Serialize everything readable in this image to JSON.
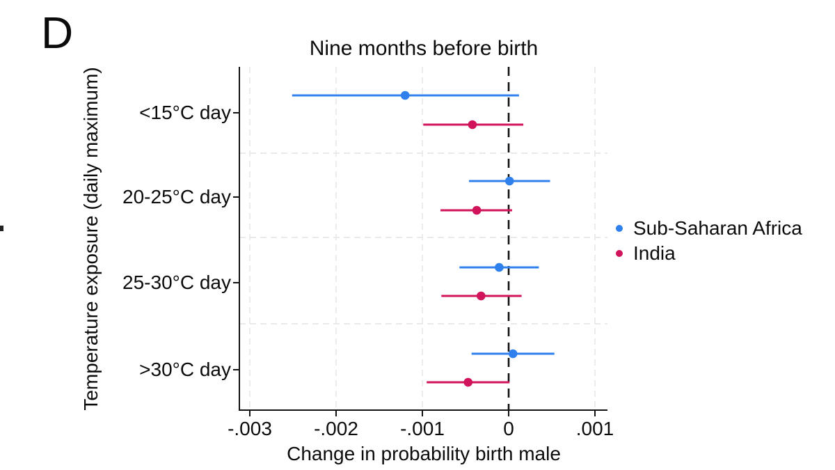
{
  "panel_label": "D",
  "title": "Nine months before birth",
  "legend": {
    "items": [
      {
        "label": "Sub-Saharan Africa",
        "color": "#2f80ed"
      },
      {
        "label": "India",
        "color": "#d0135a"
      }
    ]
  },
  "chart_data": {
    "type": "scatter",
    "subtype": "coefficient_plot_with_confidence_intervals",
    "title": "Nine months before birth",
    "panel_label": "D",
    "xlabel": "Change in probability birth male",
    "ylabel": "Temperature exposure (daily maximum)",
    "categories": [
      "<15°C day",
      "20-25°C day",
      "25-30°C day",
      ">30°C day"
    ],
    "x_ticks": [
      {
        "value": -0.003,
        "label": "-.003"
      },
      {
        "value": -0.002,
        "label": "-.002"
      },
      {
        "value": -0.001,
        "label": "-.001"
      },
      {
        "value": 0,
        "label": "0"
      },
      {
        "value": 0.001,
        "label": ".001"
      }
    ],
    "xlim": [
      -0.0031,
      0.00115
    ],
    "zero_reference_line": 0,
    "grid": {
      "horizontal_dashed_between_categories": true,
      "vertical_dashed_at_ticks": true
    },
    "legend_position": "right",
    "series": [
      {
        "name": "Sub-Saharan Africa",
        "color": "#2f80ed",
        "points": [
          {
            "category": "<15°C day",
            "value": -0.0012,
            "ci_low": -0.00251,
            "ci_high": 0.00012
          },
          {
            "category": "20-25°C day",
            "value": 1e-05,
            "ci_low": -0.00046,
            "ci_high": 0.00048
          },
          {
            "category": "25-30°C day",
            "value": -0.00011,
            "ci_low": -0.00057,
            "ci_high": 0.00035
          },
          {
            "category": ">30°C day",
            "value": 5e-05,
            "ci_low": -0.00043,
            "ci_high": 0.00053
          }
        ]
      },
      {
        "name": "India",
        "color": "#d0135a",
        "points": [
          {
            "category": "<15°C day",
            "value": -0.00042,
            "ci_low": -0.00099,
            "ci_high": 0.00017
          },
          {
            "category": "20-25°C day",
            "value": -0.00037,
            "ci_low": -0.00079,
            "ci_high": 4e-05
          },
          {
            "category": "25-30°C day",
            "value": -0.00032,
            "ci_low": -0.00078,
            "ci_high": 0.00015
          },
          {
            "category": ">30°C day",
            "value": -0.00047,
            "ci_low": -0.00095,
            "ci_high": 1e-05
          }
        ]
      }
    ]
  }
}
